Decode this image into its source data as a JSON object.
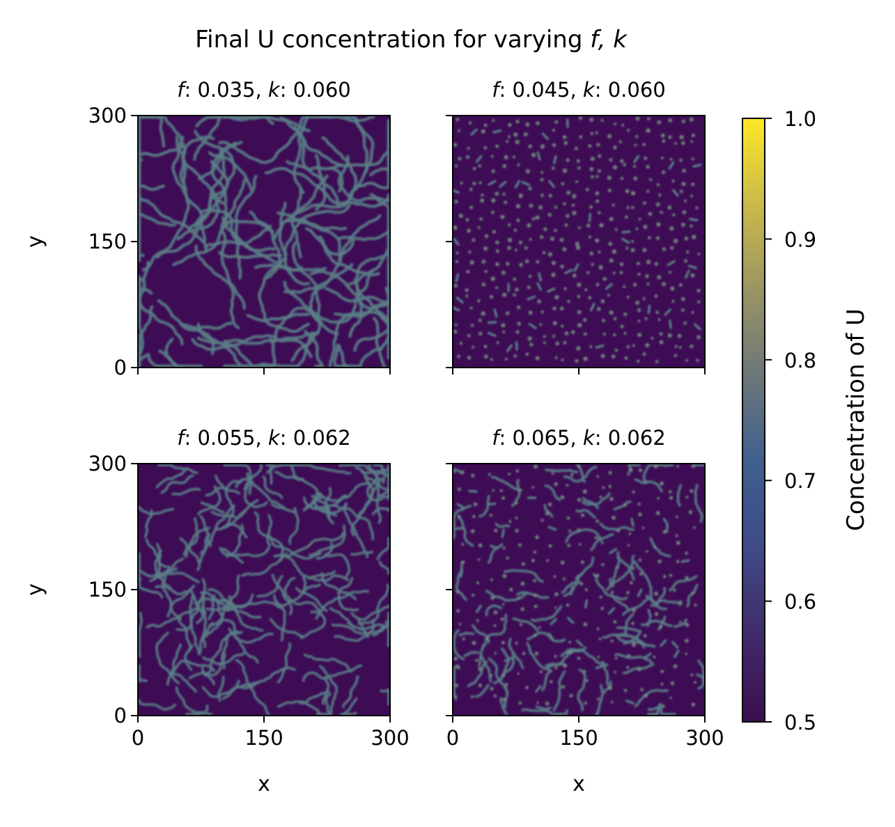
{
  "chart_data": {
    "type": "heatmap",
    "title_prefix": "Final U concentration for varying ",
    "title_math": "f, k",
    "panels": [
      {
        "f_label": "f",
        "f_value": "0.035",
        "k_label": "k",
        "k_value": "0.060",
        "pattern": "labyrinth-coarse",
        "show_xticklabels": false,
        "show_yticklabels": true
      },
      {
        "f_label": "f",
        "f_value": "0.045",
        "k_label": "k",
        "k_value": "0.060",
        "pattern": "spots",
        "show_xticklabels": false,
        "show_yticklabels": false
      },
      {
        "f_label": "f",
        "f_value": "0.055",
        "k_label": "k",
        "k_value": "0.062",
        "pattern": "labyrinth-fine",
        "show_xticklabels": true,
        "show_yticklabels": true
      },
      {
        "f_label": "f",
        "f_value": "0.065",
        "k_label": "k",
        "k_value": "0.062",
        "pattern": "mixed-stripes-spots",
        "show_xticklabels": true,
        "show_yticklabels": false
      }
    ],
    "xlabel": "x",
    "ylabel": "y",
    "xlim": [
      0,
      300
    ],
    "ylim": [
      0,
      300
    ],
    "xticks": [
      0,
      150,
      300
    ],
    "yticks": [
      0,
      150,
      300
    ],
    "xtick_labels": [
      "0",
      "150",
      "300"
    ],
    "ytick_labels": [
      "0",
      "150",
      "300"
    ],
    "colorbar": {
      "label": "Concentration of U",
      "range": [
        0.5,
        1.0
      ],
      "ticks": [
        0.5,
        0.6,
        0.7,
        0.8,
        0.9,
        1.0
      ],
      "tick_labels": [
        "0.5",
        "0.6",
        "0.7",
        "0.8",
        "0.9",
        "1.0"
      ],
      "colormap": "cividis-like",
      "stops": [
        "#3b0f4f",
        "#412a6a",
        "#3f4a86",
        "#3e5f8f",
        "#6b7679",
        "#9a9464",
        "#cab94a",
        "#fde725"
      ]
    },
    "grid": false
  }
}
